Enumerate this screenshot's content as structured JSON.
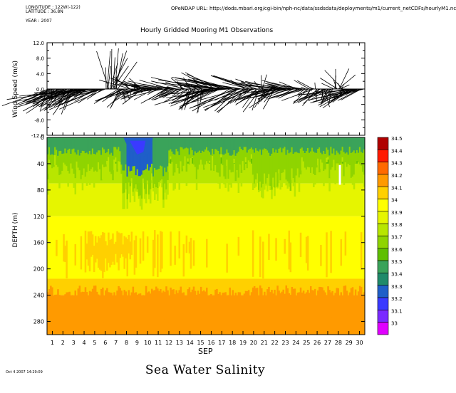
{
  "header": {
    "longitude_label": "LONGITUDE : 122W(-122)",
    "latitude_label": "LATITUDE : 36.8N",
    "year_label": "YEAR : 2007",
    "opendap_url": "OPeNDAP URL: http://dods.mbari.org/cgi-bin/nph-nc/data/ssdsdata/deployments/m1/current_netCDFs/hourlyM1.nc",
    "footer_timestamp": "Oct 4 2007 14:29:09"
  },
  "chart_data": [
    {
      "type": "vector-stick",
      "title": "Hourly Gridded Mooring M1 Observations",
      "ylabel": "Wind Speed (m/s)",
      "ylim": [
        -12,
        12
      ],
      "yticks": [
        "12.0",
        "8.0",
        "4.0",
        "0.0",
        "-4.0",
        "-8.0",
        "-12.0"
      ],
      "ytick_values": [
        12,
        8,
        4,
        0,
        -4,
        -8,
        -12
      ],
      "x_range_days": [
        0.5,
        30.5
      ]
    },
    {
      "type": "heatmap",
      "title": "Sea Water Salinity",
      "xlabel": "SEP",
      "ylabel": "DEPTH (m)",
      "xlim": [
        0.5,
        30.5
      ],
      "ylim": [
        300,
        0
      ],
      "xticks": [
        "1",
        "2",
        "3",
        "4",
        "5",
        "6",
        "7",
        "8",
        "9",
        "10",
        "11",
        "12",
        "13",
        "14",
        "15",
        "16",
        "17",
        "18",
        "19",
        "20",
        "21",
        "22",
        "23",
        "24",
        "25",
        "26",
        "27",
        "28",
        "29",
        "30"
      ],
      "yticks": [
        "0",
        "40",
        "80",
        "120",
        "160",
        "200",
        "240",
        "280"
      ],
      "ytick_values": [
        0,
        40,
        80,
        120,
        160,
        200,
        240,
        280
      ],
      "colorbar": {
        "levels": [
          "34.5",
          "34.4",
          "34.3",
          "34.2",
          "34.1",
          "34",
          "33.9",
          "33.8",
          "33.7",
          "33.6",
          "33.5",
          "33.4",
          "33.3",
          "33.2",
          "33.1",
          "33"
        ],
        "colors": [
          "#b00000",
          "#ff1a00",
          "#ff6a00",
          "#ff9a00",
          "#ffd000",
          "#ffff00",
          "#e6f500",
          "#b8e600",
          "#8fd400",
          "#5fbf00",
          "#3aa35a",
          "#1f8a6a",
          "#1f5fc8",
          "#3a3aff",
          "#7a2aff",
          "#e000ff"
        ]
      },
      "depth_bands": [
        {
          "from": 0,
          "to": 20,
          "value": 33.5
        },
        {
          "from": 20,
          "to": 40,
          "value": 33.6
        },
        {
          "from": 40,
          "to": 70,
          "value": 33.8
        },
        {
          "from": 70,
          "to": 120,
          "value": 33.9
        },
        {
          "from": 120,
          "to": 150,
          "value": 34.0
        },
        {
          "from": 150,
          "to": 215,
          "value": 34.05
        },
        {
          "from": 215,
          "to": 240,
          "value": 34.15
        },
        {
          "from": 240,
          "to": 300,
          "value": 34.25
        }
      ]
    }
  ]
}
